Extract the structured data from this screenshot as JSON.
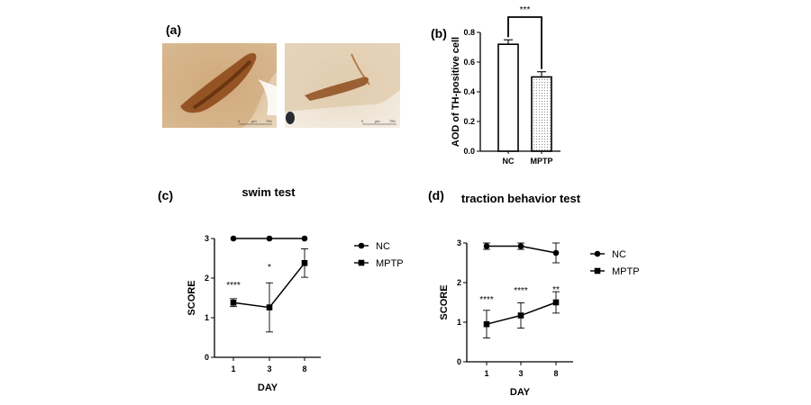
{
  "panel_labels": {
    "a": "(a)",
    "b": "(b)",
    "c": "(c)",
    "d": "(d)"
  },
  "images": [
    {
      "scale_start": "0",
      "scale_unit": "µm",
      "scale_end": "750"
    },
    {
      "scale_start": "0",
      "scale_unit": "µm",
      "scale_end": "750"
    }
  ],
  "colors": {
    "axis": "#000000",
    "tissue": "#c9a478",
    "stain": "#7a3b12",
    "background": "#f3ece0"
  },
  "chart_data": [
    {
      "id": "b",
      "type": "bar",
      "title": "",
      "xlabel": "",
      "ylabel": "AOD of TH-positive cell",
      "categories": [
        "NC",
        "MPTP"
      ],
      "values": [
        0.72,
        0.5
      ],
      "errors": [
        0.03,
        0.035
      ],
      "ylim": [
        0,
        0.8
      ],
      "yticks": [
        "0.0",
        "0.2",
        "0.4",
        "0.6",
        "0.8"
      ],
      "fills": [
        "open",
        "dotted"
      ],
      "significance": "***",
      "grid": false
    },
    {
      "id": "c",
      "type": "line",
      "title": "swim test",
      "xlabel": "DAY",
      "ylabel": "SCORE",
      "x": [
        "1",
        "3",
        "8"
      ],
      "ylim": [
        0,
        3
      ],
      "yticks": [
        "0",
        "1",
        "2",
        "3"
      ],
      "series": [
        {
          "name": "NC",
          "marker": "circle",
          "values": [
            3,
            3,
            3
          ],
          "errors": [
            0,
            0,
            0
          ]
        },
        {
          "name": "MPTP",
          "marker": "square",
          "values": [
            1.38,
            1.26,
            2.38
          ],
          "errors": [
            0.1,
            0.62,
            0.36
          ]
        }
      ],
      "significance": [
        "****",
        "*",
        ""
      ],
      "legend": "right",
      "grid": false
    },
    {
      "id": "d",
      "type": "line",
      "title": "traction behavior test",
      "xlabel": "DAY",
      "ylabel": "SCORE",
      "x": [
        "1",
        "3",
        "8"
      ],
      "ylim": [
        0,
        3
      ],
      "yticks": [
        "0",
        "1",
        "2",
        "3"
      ],
      "series": [
        {
          "name": "NC",
          "marker": "circle",
          "values": [
            2.92,
            2.92,
            2.75
          ],
          "errors": [
            0.08,
            0.08,
            0.25
          ]
        },
        {
          "name": "MPTP",
          "marker": "square",
          "values": [
            0.95,
            1.17,
            1.5
          ],
          "errors": [
            0.35,
            0.32,
            0.27
          ]
        }
      ],
      "significance": [
        "****",
        "****",
        "**"
      ],
      "legend": "right",
      "grid": false
    }
  ]
}
